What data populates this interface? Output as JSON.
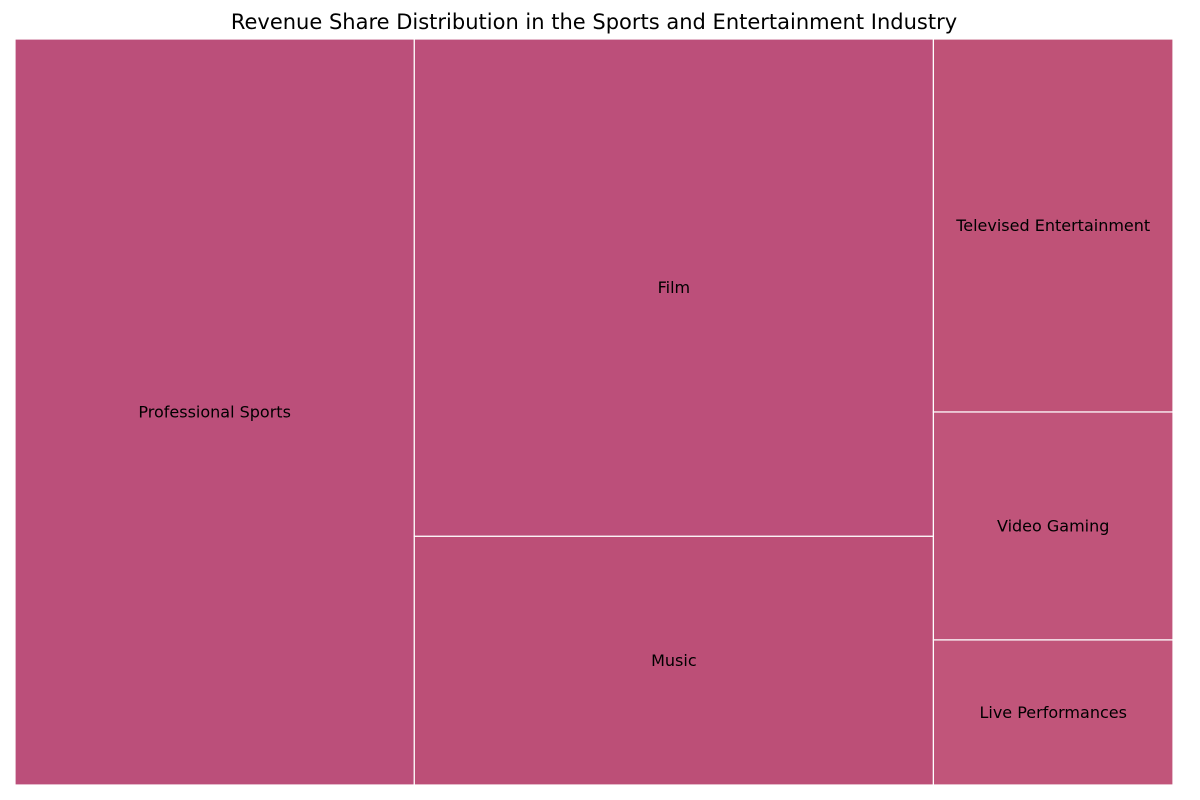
{
  "chart_data": {
    "type": "treemap",
    "title": "Revenue Share Distribution in the Sports and Entertainment Industry",
    "items": [
      {
        "label": "Professional Sports",
        "value": 30,
        "color": "#bb4f7a"
      },
      {
        "label": "Film",
        "value": 26,
        "color": "#bc4f7a"
      },
      {
        "label": "Music",
        "value": 13,
        "color": "#bc4f77"
      },
      {
        "label": "Televised Entertainment",
        "value": 9,
        "color": "#bf5277"
      },
      {
        "label": "Video Gaming",
        "value": 5.5,
        "color": "#c0547a"
      },
      {
        "label": "Live Performances",
        "value": 3.5,
        "color": "#c1557a"
      }
    ],
    "border_color": "#ffffff"
  }
}
